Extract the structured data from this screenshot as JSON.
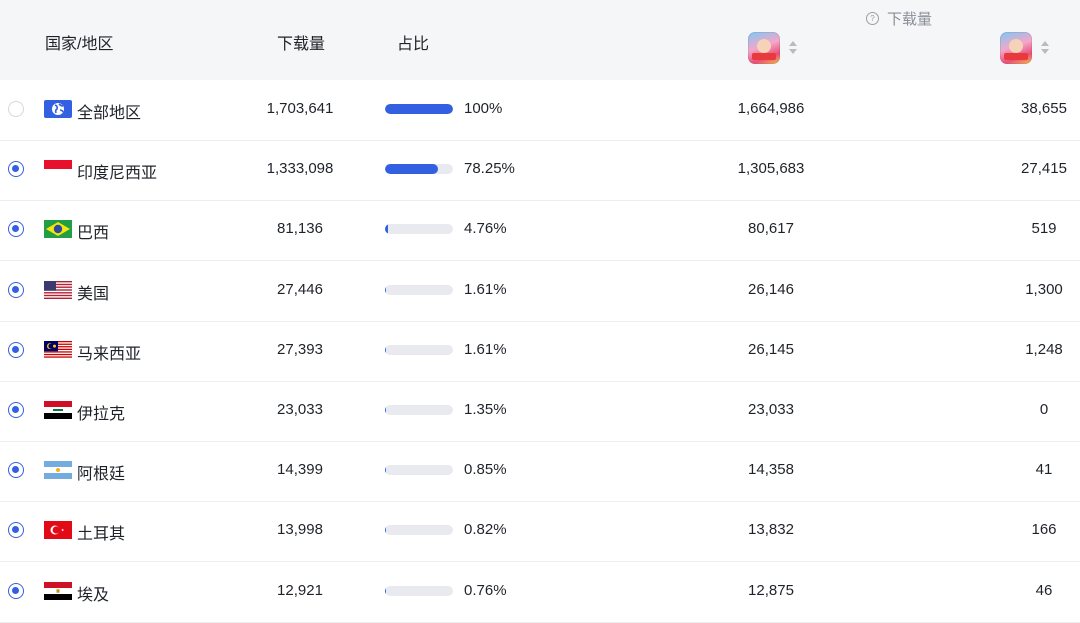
{
  "header": {
    "country": "国家/地区",
    "downloads": "下载量",
    "share": "占比",
    "group": "下载量",
    "help_icon": "?"
  },
  "accent_color": "#3360e0",
  "rows": [
    {
      "country": "全部地区",
      "flag": "globe-icon",
      "selected": false,
      "downloads": "1,703,641",
      "share_pct": 100,
      "share": "100%",
      "app1": "1,664,986",
      "app2": "38,655"
    },
    {
      "country": "印度尼西亚",
      "flag": "indonesia-flag",
      "selected": true,
      "downloads": "1,333,098",
      "share_pct": 78.25,
      "share": "78.25%",
      "app1": "1,305,683",
      "app2": "27,415"
    },
    {
      "country": "巴西",
      "flag": "brazil-flag",
      "selected": true,
      "downloads": "81,136",
      "share_pct": 4.76,
      "share": "4.76%",
      "app1": "80,617",
      "app2": "519"
    },
    {
      "country": "美国",
      "flag": "usa-flag",
      "selected": true,
      "downloads": "27,446",
      "share_pct": 1.61,
      "share": "1.61%",
      "app1": "26,146",
      "app2": "1,300"
    },
    {
      "country": "马来西亚",
      "flag": "malaysia-flag",
      "selected": true,
      "downloads": "27,393",
      "share_pct": 1.61,
      "share": "1.61%",
      "app1": "26,145",
      "app2": "1,248"
    },
    {
      "country": "伊拉克",
      "flag": "iraq-flag",
      "selected": true,
      "downloads": "23,033",
      "share_pct": 1.35,
      "share": "1.35%",
      "app1": "23,033",
      "app2": "0"
    },
    {
      "country": "阿根廷",
      "flag": "argentina-flag",
      "selected": true,
      "downloads": "14,399",
      "share_pct": 0.85,
      "share": "0.85%",
      "app1": "14,358",
      "app2": "41"
    },
    {
      "country": "土耳其",
      "flag": "turkey-flag",
      "selected": true,
      "downloads": "13,998",
      "share_pct": 0.82,
      "share": "0.82%",
      "app1": "13,832",
      "app2": "166"
    },
    {
      "country": "埃及",
      "flag": "egypt-flag",
      "selected": true,
      "downloads": "12,921",
      "share_pct": 0.76,
      "share": "0.76%",
      "app1": "12,875",
      "app2": "46"
    }
  ]
}
